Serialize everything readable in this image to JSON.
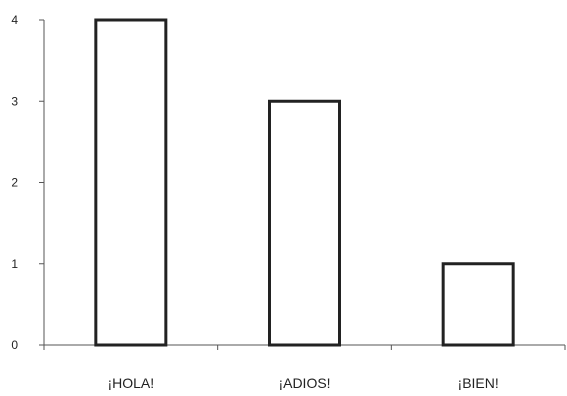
{
  "chart_data": {
    "type": "bar",
    "categories": [
      "¡HOLA!",
      "¡ADIOS!",
      "¡BIEN!"
    ],
    "values": [
      4,
      3,
      1
    ],
    "ylim": [
      0,
      4
    ],
    "yticks": [
      0,
      1,
      2,
      3,
      4
    ],
    "grid": false,
    "legend": "none",
    "bar_fill": "#ffffff",
    "bar_stroke": "#222222",
    "axis_color": "#555555"
  }
}
